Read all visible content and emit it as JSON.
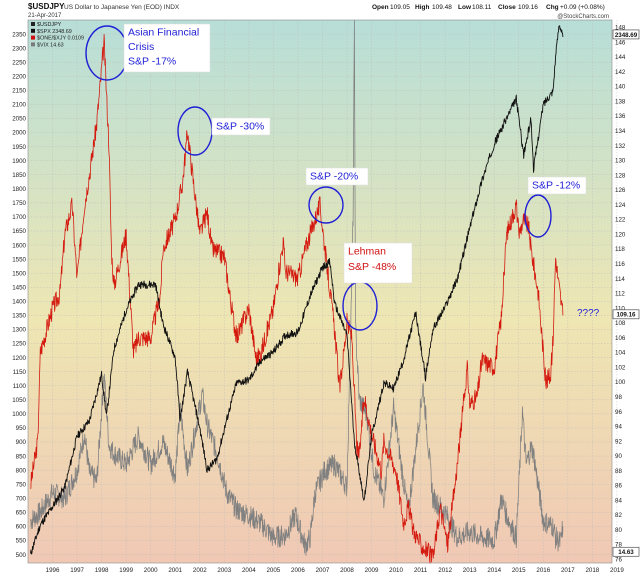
{
  "header": {
    "symbol": "$USDJPY",
    "description": "US Dollar to Japanese Yen (EOD) INDX",
    "date": "21-Apr-2017",
    "open_label": "Open",
    "open": "109.05",
    "high_label": "High",
    "high": "109.48",
    "low_label": "Low",
    "low": "108.11",
    "close_label": "Close",
    "close": "109.16",
    "chg_label": "Chg",
    "chg": "+0.09 (+0.08%)",
    "watermark": "@StockCharts.com"
  },
  "legend": [
    {
      "label": "$USDJPY",
      "color": "#222222"
    },
    {
      "label": "$SPX 2348.69",
      "color": "#111111"
    },
    {
      "label": "$ONE/$XJY 0.0109",
      "color": "#d01010"
    },
    {
      "label": "$VIX 14.63",
      "color": "#7a7a7a"
    }
  ],
  "colors": {
    "spx": "#111111",
    "usdjpy": "#d41a0f",
    "vix": "#808080",
    "annotation": "#1f1fd6",
    "grid": "#b9b9b9",
    "bg_top": "#b7ded8",
    "bg_mid": "#eee6b3",
    "bg_bottom": "#f0c8b4"
  },
  "annotations": [
    {
      "text": "Asian Financial\nCrisis\nS&P -17%",
      "color": "#1f1fd6"
    },
    {
      "text": "S&P -30%",
      "color": "#1f1fd6"
    },
    {
      "text": "S&P -20%",
      "color": "#1f1fd6"
    },
    {
      "text": "Lehman\nS&P -48%",
      "color": "#d01010"
    },
    {
      "text": "S&P -12%",
      "color": "#1f1fd6"
    },
    {
      "text": "????",
      "color": "#1f1fd6"
    }
  ],
  "chart_data": {
    "type": "line",
    "x_ticks": [
      "1996",
      "1997",
      "1998",
      "1999",
      "2000",
      "2001",
      "2002",
      "2003",
      "2004",
      "2005",
      "2006",
      "2007",
      "2008",
      "2009",
      "2010",
      "2011",
      "2012",
      "2013",
      "2014",
      "2015",
      "2016",
      "2017",
      "2018",
      "2019"
    ],
    "x_range": [
      1995.5,
      2019.3
    ],
    "left_axis": {
      "range": [
        470,
        2400
      ],
      "ticks": [
        500,
        550,
        600,
        650,
        700,
        750,
        800,
        850,
        900,
        950,
        1000,
        1050,
        1100,
        1150,
        1200,
        1250,
        1300,
        1350,
        1400,
        1450,
        1500,
        1550,
        1600,
        1650,
        1700,
        1750,
        1800,
        1850,
        1900,
        1950,
        2000,
        2050,
        2100,
        2150,
        2200,
        2250,
        2300,
        2350
      ]
    },
    "right_axis": {
      "range": [
        75.5,
        149
      ],
      "ticks": [
        76,
        78,
        80,
        82,
        84,
        86,
        88,
        90,
        92,
        94,
        96,
        98,
        100,
        102,
        104,
        106,
        108,
        110,
        112,
        114,
        116,
        118,
        120,
        122,
        124,
        126,
        128,
        130,
        132,
        134,
        136,
        138,
        140,
        142,
        144,
        146,
        148
      ]
    },
    "last_values": [
      {
        "series": "$SPX",
        "value": "2348.69"
      },
      {
        "series": "$USDJPY",
        "value": "109.16"
      },
      {
        "series": "$VIX",
        "value": "14.63"
      }
    ],
    "series": [
      {
        "name": "$SPX",
        "axis": "left",
        "color": "#111111",
        "points": [
          [
            1995.6,
            500
          ],
          [
            1996.0,
            605
          ],
          [
            1996.5,
            670
          ],
          [
            1997.0,
            740
          ],
          [
            1997.5,
            920
          ],
          [
            1998.0,
            975
          ],
          [
            1998.5,
            1140
          ],
          [
            1998.7,
            990
          ],
          [
            1999.0,
            1230
          ],
          [
            1999.5,
            1370
          ],
          [
            2000.0,
            1460
          ],
          [
            2000.7,
            1460
          ],
          [
            2001.0,
            1320
          ],
          [
            2001.5,
            1200
          ],
          [
            2001.7,
            980
          ],
          [
            2002.0,
            1150
          ],
          [
            2002.5,
            950
          ],
          [
            2002.8,
            800
          ],
          [
            2003.2,
            840
          ],
          [
            2003.6,
            980
          ],
          [
            2004.0,
            1110
          ],
          [
            2004.5,
            1120
          ],
          [
            2005.0,
            1190
          ],
          [
            2005.5,
            1220
          ],
          [
            2006.0,
            1280
          ],
          [
            2006.5,
            1290
          ],
          [
            2007.0,
            1420
          ],
          [
            2007.5,
            1520
          ],
          [
            2007.8,
            1540
          ],
          [
            2008.0,
            1390
          ],
          [
            2008.5,
            1280
          ],
          [
            2008.8,
            900
          ],
          [
            2009.2,
            690
          ],
          [
            2009.5,
            920
          ],
          [
            2010.0,
            1110
          ],
          [
            2010.4,
            1090
          ],
          [
            2010.8,
            1190
          ],
          [
            2011.3,
            1360
          ],
          [
            2011.7,
            1130
          ],
          [
            2012.0,
            1300
          ],
          [
            2012.5,
            1380
          ],
          [
            2013.0,
            1480
          ],
          [
            2013.5,
            1660
          ],
          [
            2014.0,
            1830
          ],
          [
            2014.5,
            1960
          ],
          [
            2015.0,
            2050
          ],
          [
            2015.4,
            2120
          ],
          [
            2015.7,
            1920
          ],
          [
            2016.0,
            2050
          ],
          [
            2016.1,
            1870
          ],
          [
            2016.5,
            2100
          ],
          [
            2016.9,
            2150
          ],
          [
            2017.0,
            2270
          ],
          [
            2017.15,
            2390
          ],
          [
            2017.3,
            2340
          ]
        ]
      },
      {
        "name": "$ONE/$XJY",
        "axis": "right",
        "color": "#d41a0f",
        "points": [
          [
            1995.6,
            86
          ],
          [
            1995.9,
            92
          ],
          [
            1996.0,
            104
          ],
          [
            1996.5,
            110
          ],
          [
            1996.8,
            112
          ],
          [
            1997.0,
            120
          ],
          [
            1997.3,
            124
          ],
          [
            1997.5,
            114
          ],
          [
            1997.8,
            124
          ],
          [
            1998.0,
            128
          ],
          [
            1998.3,
            135
          ],
          [
            1998.6,
            146
          ],
          [
            1998.8,
            132
          ],
          [
            1998.9,
            118
          ],
          [
            1999.0,
            113
          ],
          [
            1999.5,
            120
          ],
          [
            1999.8,
            104
          ],
          [
            2000.0,
            106
          ],
          [
            2000.5,
            106
          ],
          [
            2000.9,
            112
          ],
          [
            2001.0,
            118
          ],
          [
            2001.5,
            122
          ],
          [
            2001.8,
            127
          ],
          [
            2002.0,
            134
          ],
          [
            2002.1,
            131
          ],
          [
            2002.5,
            120
          ],
          [
            2002.8,
            123
          ],
          [
            2003.0,
            118
          ],
          [
            2003.5,
            117
          ],
          [
            2003.8,
            110
          ],
          [
            2004.0,
            106
          ],
          [
            2004.5,
            110
          ],
          [
            2004.8,
            103
          ],
          [
            2005.0,
            104
          ],
          [
            2005.5,
            110
          ],
          [
            2005.9,
            119
          ],
          [
            2006.0,
            115
          ],
          [
            2006.5,
            114
          ],
          [
            2006.8,
            118
          ],
          [
            2007.0,
            120
          ],
          [
            2007.4,
            124
          ],
          [
            2007.6,
            118
          ],
          [
            2008.0,
            107
          ],
          [
            2008.2,
            99
          ],
          [
            2008.5,
            108
          ],
          [
            2008.7,
            106
          ],
          [
            2008.9,
            91
          ],
          [
            2009.0,
            90
          ],
          [
            2009.2,
            98
          ],
          [
            2009.5,
            93
          ],
          [
            2009.9,
            88
          ],
          [
            2010.0,
            92
          ],
          [
            2010.5,
            88
          ],
          [
            2010.8,
            81
          ],
          [
            2011.0,
            83
          ],
          [
            2011.2,
            80
          ],
          [
            2011.5,
            78
          ],
          [
            2011.8,
            77
          ],
          [
            2012.0,
            76
          ],
          [
            2012.3,
            83
          ],
          [
            2012.6,
            78
          ],
          [
            2012.9,
            86
          ],
          [
            2013.0,
            89
          ],
          [
            2013.4,
            102
          ],
          [
            2013.5,
            97
          ],
          [
            2013.8,
            98
          ],
          [
            2014.0,
            103
          ],
          [
            2014.5,
            102
          ],
          [
            2014.8,
            109
          ],
          [
            2015.0,
            120
          ],
          [
            2015.4,
            124
          ],
          [
            2015.5,
            120
          ],
          [
            2015.7,
            122
          ],
          [
            2015.9,
            121
          ],
          [
            2016.0,
            118
          ],
          [
            2016.3,
            112
          ],
          [
            2016.5,
            104
          ],
          [
            2016.6,
            100
          ],
          [
            2016.8,
            101
          ],
          [
            2016.9,
            106
          ],
          [
            2017.0,
            117
          ],
          [
            2017.1,
            114
          ],
          [
            2017.3,
            109
          ]
        ]
      },
      {
        "name": "$VIX",
        "axis": "left",
        "color": "#808080",
        "points": [
          [
            1995.6,
            620
          ],
          [
            1996.0,
            650
          ],
          [
            1996.5,
            720
          ],
          [
            1997.0,
            700
          ],
          [
            1997.5,
            800
          ],
          [
            1997.8,
            930
          ],
          [
            1998.0,
            790
          ],
          [
            1998.3,
            760
          ],
          [
            1998.6,
            1140
          ],
          [
            1998.8,
            890
          ],
          [
            1999.0,
            860
          ],
          [
            1999.5,
            820
          ],
          [
            2000.0,
            920
          ],
          [
            2000.5,
            820
          ],
          [
            2001.0,
            900
          ],
          [
            2001.5,
            780
          ],
          [
            2001.7,
            1020
          ],
          [
            2002.0,
            800
          ],
          [
            2002.6,
            1070
          ],
          [
            2002.8,
            960
          ],
          [
            2003.2,
            860
          ],
          [
            2003.6,
            720
          ],
          [
            2004.0,
            660
          ],
          [
            2004.5,
            640
          ],
          [
            2005.0,
            610
          ],
          [
            2005.5,
            560
          ],
          [
            2006.0,
            570
          ],
          [
            2006.4,
            640
          ],
          [
            2006.8,
            530
          ],
          [
            2007.0,
            560
          ],
          [
            2007.2,
            720
          ],
          [
            2007.6,
            800
          ],
          [
            2008.0,
            820
          ],
          [
            2008.5,
            740
          ],
          [
            2008.75,
            1700
          ],
          [
            2008.8,
            2360
          ],
          [
            2008.85,
            1300
          ],
          [
            2009.0,
            1050
          ],
          [
            2009.3,
            1000
          ],
          [
            2009.6,
            800
          ],
          [
            2010.0,
            700
          ],
          [
            2010.4,
            1020
          ],
          [
            2010.8,
            760
          ],
          [
            2011.0,
            650
          ],
          [
            2011.6,
            1100
          ],
          [
            2011.9,
            800
          ],
          [
            2012.0,
            700
          ],
          [
            2012.5,
            650
          ],
          [
            2013.0,
            560
          ],
          [
            2013.5,
            580
          ],
          [
            2014.0,
            560
          ],
          [
            2014.5,
            550
          ],
          [
            2014.8,
            700
          ],
          [
            2015.0,
            640
          ],
          [
            2015.4,
            560
          ],
          [
            2015.65,
            1010
          ],
          [
            2015.8,
            820
          ],
          [
            2016.0,
            880
          ],
          [
            2016.1,
            860
          ],
          [
            2016.5,
            620
          ],
          [
            2016.9,
            600
          ],
          [
            2017.0,
            560
          ],
          [
            2017.2,
            540
          ],
          [
            2017.3,
            600
          ]
        ]
      }
    ]
  }
}
